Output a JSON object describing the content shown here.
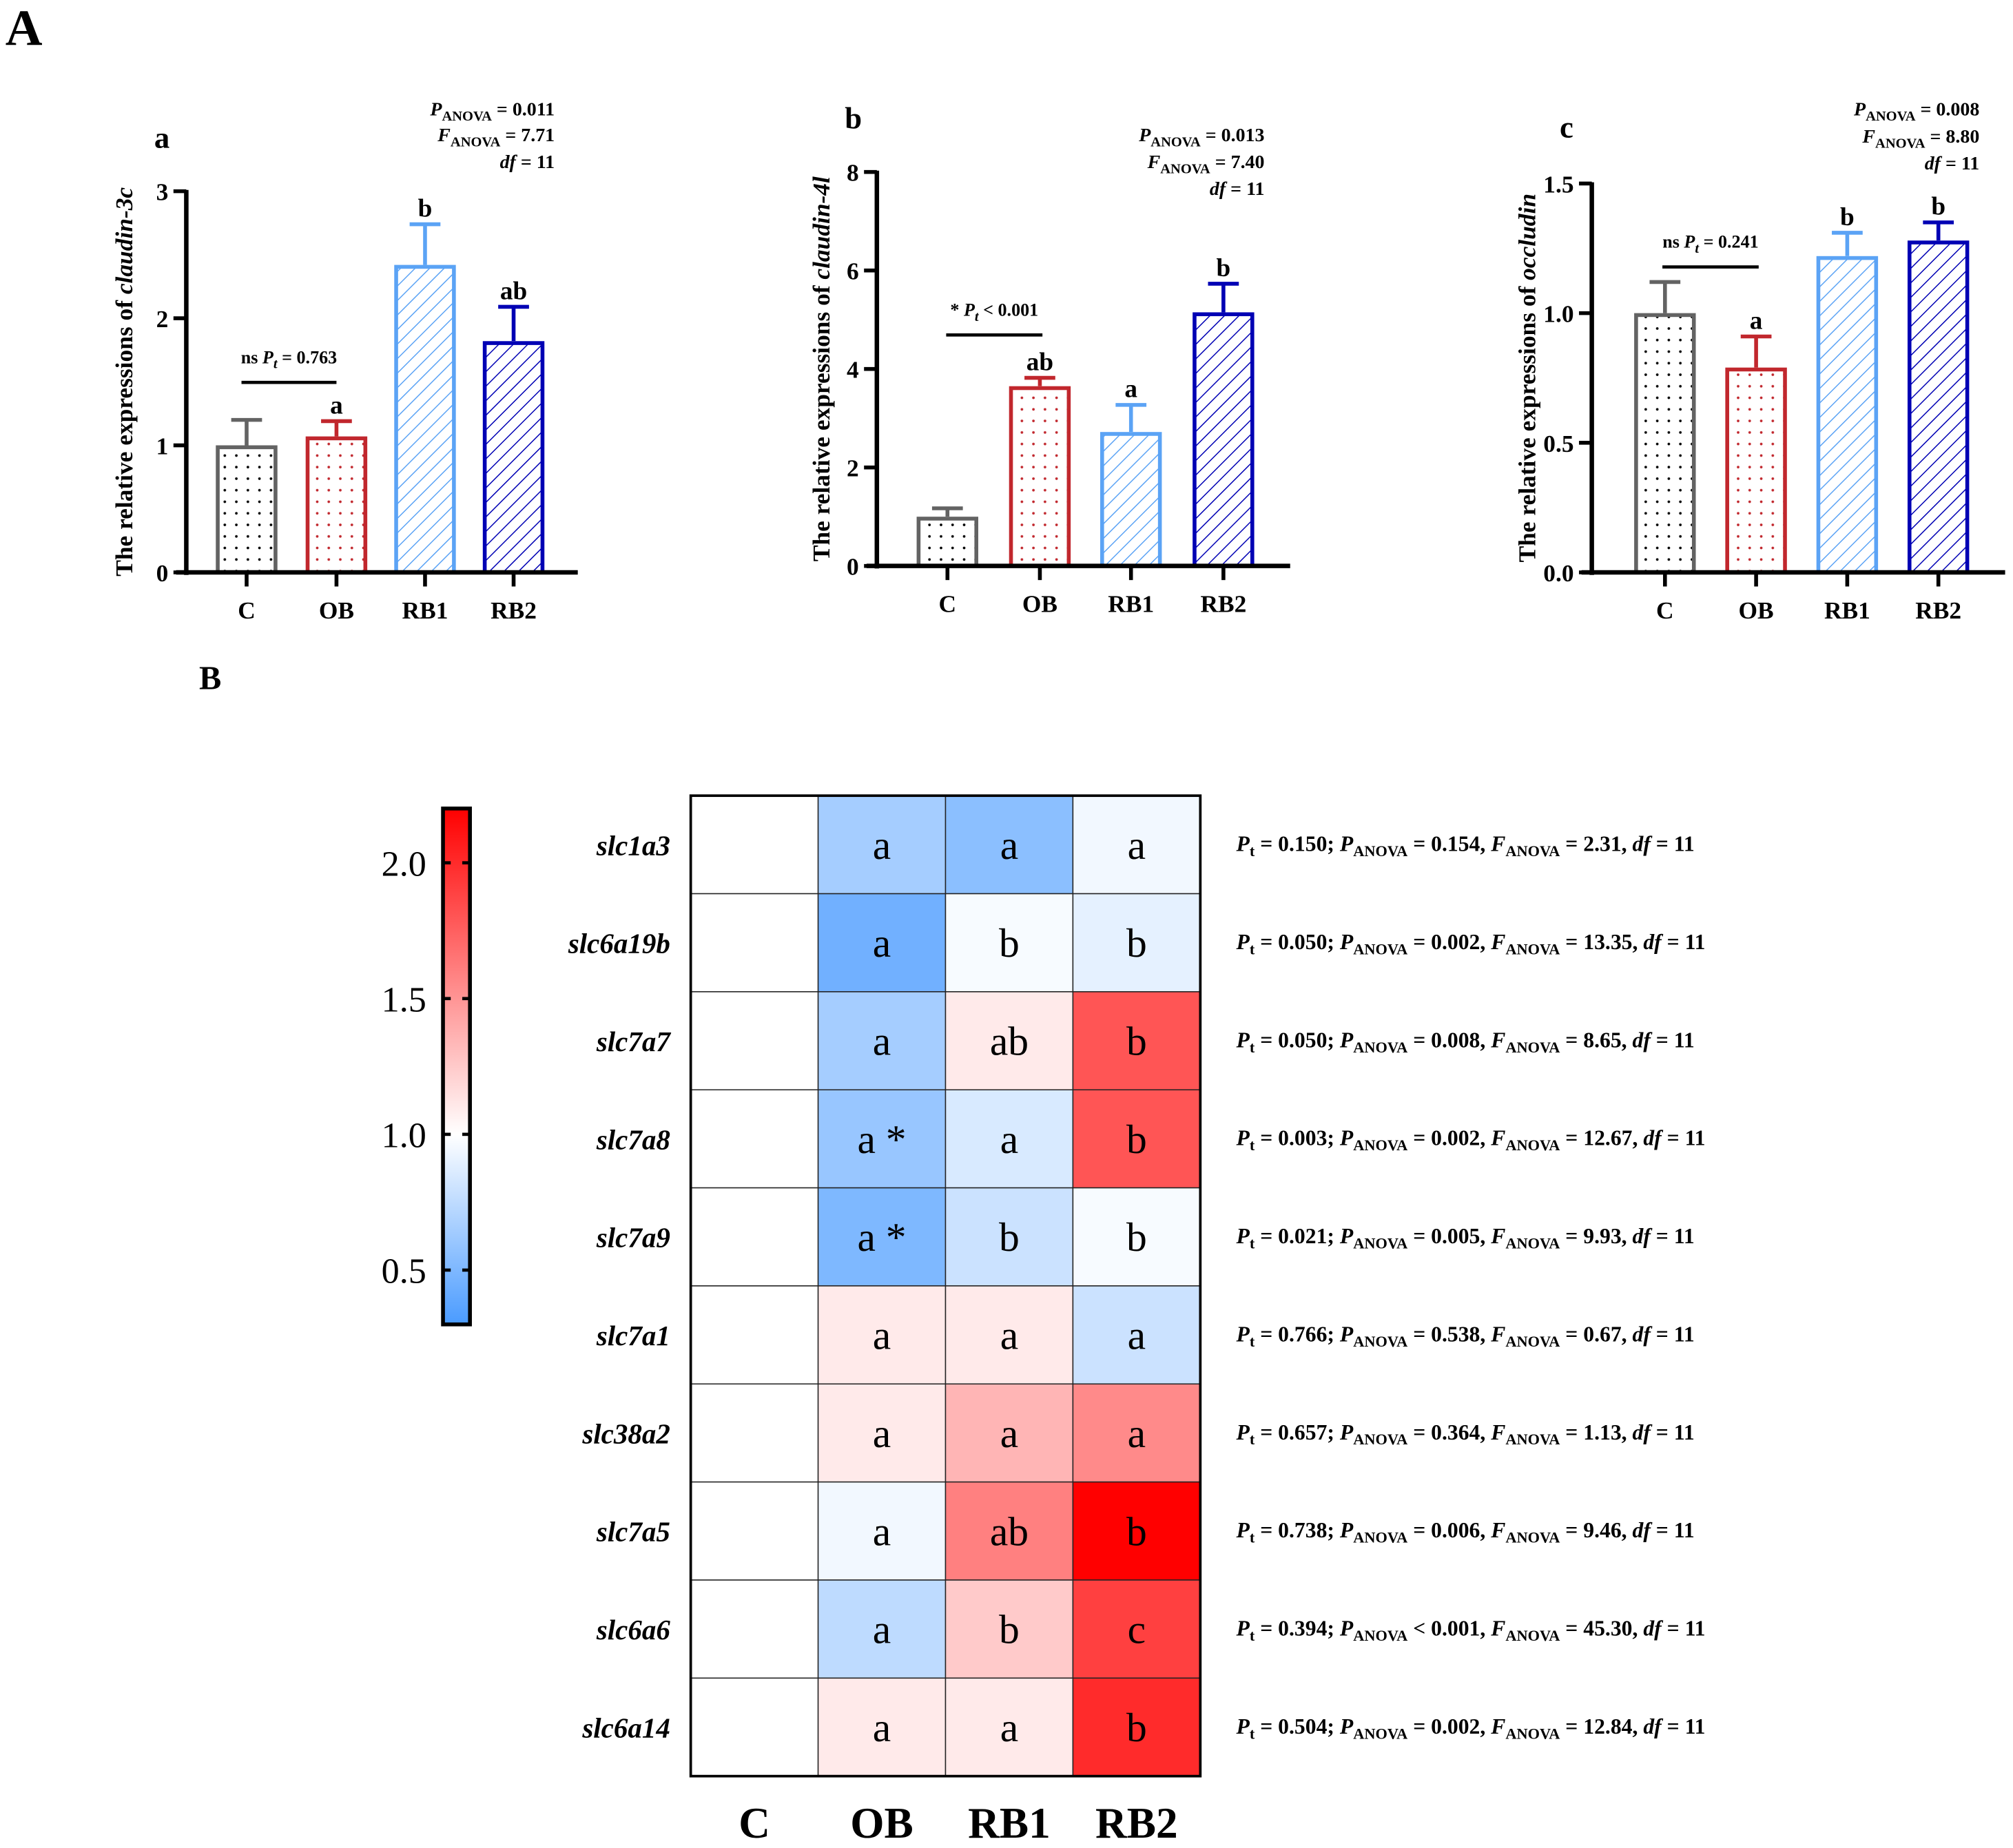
{
  "figure_labels": {
    "panel_A": "A",
    "panel_B": "B"
  },
  "symbols": {
    "P": "P",
    "F": "F",
    "anova": "ANOVA",
    "t": "t",
    "df": "df"
  },
  "chart_data": [
    {
      "type": "bar",
      "panel": "a",
      "ylabel_prefix": "The relative expressions of ",
      "gene": "claudin-3c",
      "categories": [
        "C",
        "OB",
        "RB1",
        "RB2"
      ],
      "values": [
        1.0,
        1.07,
        2.42,
        1.82
      ],
      "errors": [
        0.2,
        0.12,
        0.32,
        0.27
      ],
      "letters": [
        "",
        "a",
        "b",
        "ab"
      ],
      "ylim": [
        0,
        3
      ],
      "yticks": [
        "0",
        "1",
        "2",
        "3"
      ],
      "stats": {
        "p_op": "=",
        "p_anova": "0.011",
        "f_op": "=",
        "f_anova": "7.71",
        "df_op": "=",
        "df": "11"
      },
      "comparison": {
        "sig": "ns",
        "op": "=",
        "pt": "0.763"
      },
      "colors": [
        "#636363",
        "#c1272d",
        "#5ba3f5",
        "#0000b4"
      ]
    },
    {
      "type": "bar",
      "panel": "b",
      "ylabel_prefix": "The relative expressions of ",
      "gene": "claudin-4l",
      "categories": [
        "C",
        "OB",
        "RB1",
        "RB2"
      ],
      "values": [
        1.0,
        3.65,
        2.72,
        5.15
      ],
      "errors": [
        0.17,
        0.17,
        0.55,
        0.58
      ],
      "letters": [
        "",
        "ab",
        "a",
        "b"
      ],
      "ylim": [
        0,
        8
      ],
      "yticks": [
        "0",
        "2",
        "4",
        "6",
        "8"
      ],
      "stats": {
        "p_op": "=",
        "p_anova": "0.013",
        "f_op": "=",
        "f_anova": "7.40",
        "df_op": "=",
        "df": "11"
      },
      "comparison": {
        "sig": "*",
        "op": "<",
        "pt": "0.001"
      },
      "colors": [
        "#636363",
        "#c1272d",
        "#5ba3f5",
        "#0000b4"
      ]
    },
    {
      "type": "bar",
      "panel": "c",
      "ylabel_prefix": "The relative expressions of ",
      "gene": "occludin",
      "categories": [
        "C",
        "OB",
        "RB1",
        "RB2"
      ],
      "values": [
        1.0,
        0.79,
        1.22,
        1.28
      ],
      "errors": [
        0.12,
        0.12,
        0.09,
        0.07
      ],
      "letters": [
        "",
        "a",
        "b",
        "b"
      ],
      "ylim": [
        0,
        1.5
      ],
      "yticks": [
        "0.0",
        "0.5",
        "1.0",
        "1.5"
      ],
      "stats": {
        "p_op": "=",
        "p_anova": "0.008",
        "f_op": "=",
        "f_anova": "8.80",
        "df_op": "=",
        "df": "11"
      },
      "comparison": {
        "sig": "ns",
        "op": "=",
        "pt": "0.241"
      },
      "colors": [
        "#636363",
        "#c1272d",
        "#5ba3f5",
        "#0000b4"
      ]
    },
    {
      "type": "heatmap",
      "panel": "B",
      "columns": [
        "C",
        "OB",
        "RB1",
        "RB2"
      ],
      "rows": [
        "slc1a3",
        "slc6a19b",
        "slc7a7",
        "slc7a8",
        "slc7a9",
        "slc7a1",
        "slc38a2",
        "slc7a5",
        "slc6a6",
        "slc6a14"
      ],
      "values": [
        [
          1.0,
          0.65,
          0.55,
          0.95
        ],
        [
          1.0,
          0.45,
          0.97,
          0.9
        ],
        [
          1.0,
          0.65,
          1.1,
          1.8
        ],
        [
          1.0,
          0.6,
          0.85,
          1.8
        ],
        [
          1.0,
          0.5,
          0.8,
          0.97
        ],
        [
          1.0,
          1.1,
          1.1,
          0.8
        ],
        [
          1.0,
          1.1,
          1.35,
          1.55
        ],
        [
          1.0,
          0.95,
          1.6,
          2.2
        ],
        [
          1.0,
          0.75,
          1.25,
          1.9
        ],
        [
          1.0,
          1.1,
          1.1,
          2.0
        ]
      ],
      "letters": [
        [
          "",
          "a",
          "a",
          "a"
        ],
        [
          "",
          "a",
          "b",
          "b"
        ],
        [
          "",
          "a",
          "ab",
          "b"
        ],
        [
          "",
          "a *",
          "a",
          "b"
        ],
        [
          "",
          "a *",
          "b",
          "b"
        ],
        [
          "",
          "a",
          "a",
          "a"
        ],
        [
          "",
          "a",
          "a",
          "a"
        ],
        [
          "",
          "a",
          "ab",
          "b"
        ],
        [
          "",
          "a",
          "b",
          "c"
        ],
        [
          "",
          "a",
          "a",
          "b"
        ]
      ],
      "stats": [
        {
          "pt": "0.150",
          "p_op": "=",
          "p_anova": "0.154",
          "f_anova": "2.31",
          "df": "11"
        },
        {
          "pt": "0.050",
          "p_op": "=",
          "p_anova": "0.002",
          "f_anova": "13.35",
          "df": "11"
        },
        {
          "pt": "0.050",
          "p_op": "=",
          "p_anova": "0.008",
          "f_anova": "8.65",
          "df": "11"
        },
        {
          "pt": "0.003",
          "p_op": "=",
          "p_anova": "0.002",
          "f_anova": "12.67",
          "df": "11"
        },
        {
          "pt": "0.021",
          "p_op": "=",
          "p_anova": "0.005",
          "f_anova": "9.93",
          "df": "11"
        },
        {
          "pt": "0.766",
          "p_op": "=",
          "p_anova": "0.538",
          "f_anova": "0.67",
          "df": "11"
        },
        {
          "pt": "0.657",
          "p_op": "=",
          "p_anova": "0.364",
          "f_anova": "1.13",
          "df": "11"
        },
        {
          "pt": "0.738",
          "p_op": "=",
          "p_anova": "0.006",
          "f_anova": "9.46",
          "df": "11"
        },
        {
          "pt": "0.394",
          "p_op": "<",
          "p_anova": "0.001",
          "f_anova": "45.30",
          "df": "11"
        },
        {
          "pt": "0.504",
          "p_op": "=",
          "p_anova": "0.002",
          "f_anova": "12.84",
          "df": "11"
        }
      ],
      "colorbar": {
        "range": [
          0.3,
          2.2
        ],
        "ticks": [
          "0.5",
          "1.0",
          "1.5",
          "2.0"
        ],
        "tick_values": [
          0.5,
          1.0,
          1.5,
          2.0
        ],
        "low_color": "#4a9bff",
        "mid_color": "#ffffff",
        "high_color": "#ff0000"
      }
    }
  ]
}
